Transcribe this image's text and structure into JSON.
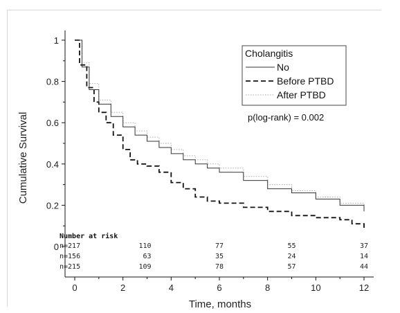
{
  "chart_data": {
    "type": "line",
    "xlabel": "Time, months",
    "ylabel": "Cumulative Survival",
    "xlim": [
      0,
      12
    ],
    "ylim": [
      0,
      1
    ],
    "x_ticks": [
      "0",
      "2",
      "4",
      "6",
      "8",
      "10",
      "12"
    ],
    "y_ticks": [
      "0",
      "0.2",
      "0.4",
      "0.6",
      "0.8",
      "1"
    ],
    "legend": {
      "title": "Cholangitis",
      "placement": "top-right"
    },
    "annotation": "p(log-rank) = 0.002",
    "series": [
      {
        "name": "No",
        "color": "#333333",
        "style": "solid",
        "x": [
          0,
          0.3,
          0.6,
          1.0,
          1.5,
          2.0,
          2.5,
          3.0,
          3.5,
          4.0,
          4.5,
          5.0,
          5.5,
          6.0,
          7.0,
          8.0,
          9.0,
          10.0,
          11.0,
          12.0
        ],
        "y": [
          1.0,
          0.87,
          0.76,
          0.69,
          0.63,
          0.58,
          0.54,
          0.51,
          0.48,
          0.45,
          0.42,
          0.4,
          0.38,
          0.36,
          0.32,
          0.28,
          0.26,
          0.23,
          0.2,
          0.17
        ]
      },
      {
        "name": "Before PTBD",
        "color": "#111111",
        "style": "dashed",
        "x": [
          0,
          0.2,
          0.5,
          0.8,
          1.0,
          1.3,
          1.6,
          2.0,
          2.3,
          2.6,
          3.0,
          3.5,
          4.0,
          4.5,
          5.0,
          5.5,
          6.0,
          7.0,
          8.0,
          9.0,
          10.0,
          11.0,
          11.5,
          12.0
        ],
        "y": [
          1.0,
          0.88,
          0.77,
          0.7,
          0.65,
          0.6,
          0.54,
          0.47,
          0.42,
          0.4,
          0.39,
          0.36,
          0.31,
          0.28,
          0.24,
          0.22,
          0.21,
          0.19,
          0.17,
          0.15,
          0.14,
          0.13,
          0.11,
          0.09
        ]
      },
      {
        "name": "After PTBD",
        "color": "#aaaaaa",
        "style": "dotted",
        "x": [
          0,
          0.3,
          0.6,
          1.0,
          1.5,
          2.0,
          2.5,
          3.0,
          3.5,
          4.0,
          4.5,
          5.0,
          5.5,
          6.0,
          7.0,
          8.0,
          9.0,
          10.0,
          11.0,
          12.0
        ],
        "y": [
          1.0,
          0.89,
          0.79,
          0.71,
          0.65,
          0.6,
          0.56,
          0.53,
          0.5,
          0.47,
          0.44,
          0.42,
          0.4,
          0.38,
          0.34,
          0.3,
          0.27,
          0.24,
          0.21,
          0.18
        ]
      }
    ],
    "risk_table": {
      "title": "Number at risk",
      "rows": [
        {
          "n": "n=217",
          "values": [
            "110",
            "77",
            "55",
            "37"
          ]
        },
        {
          "n": "n=156",
          "values": [
            "63",
            "35",
            "24",
            "14"
          ]
        },
        {
          "n": "n=215",
          "values": [
            "109",
            "78",
            "57",
            "44"
          ]
        }
      ],
      "at_times": [
        3,
        6,
        9,
        12
      ]
    }
  }
}
